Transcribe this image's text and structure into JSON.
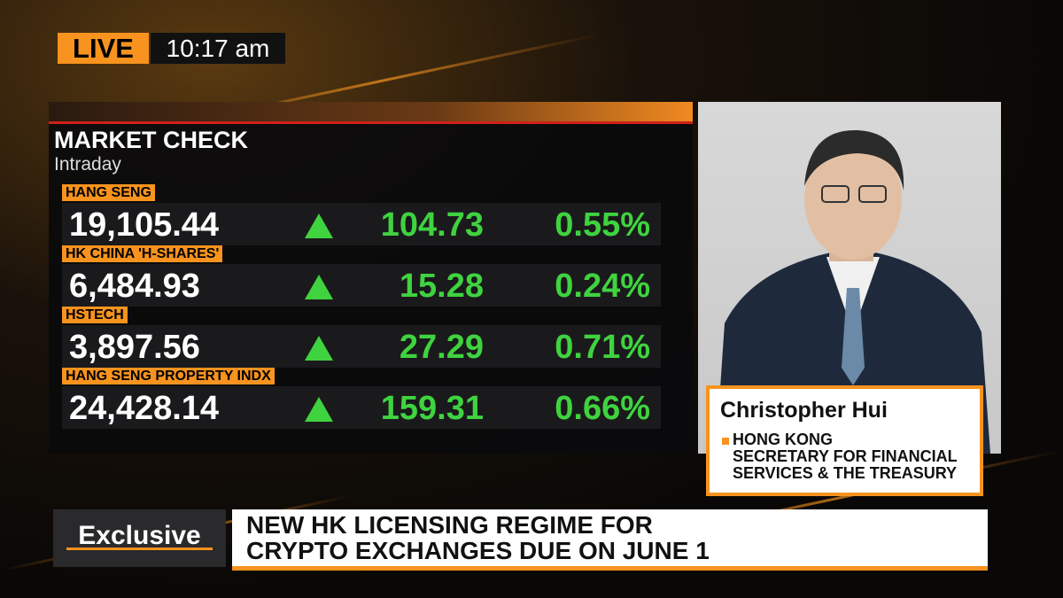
{
  "live": {
    "label": "LIVE",
    "time": "10:17 am"
  },
  "market_check": {
    "title": "MARKET CHECK",
    "subtitle": "Intraday",
    "rows": [
      {
        "name": "HANG SENG",
        "value": "19,105.44",
        "change": "104.73",
        "percent": "0.55%"
      },
      {
        "name": "HK CHINA 'H-SHARES'",
        "value": "6,484.93",
        "change": "15.28",
        "percent": "0.24%"
      },
      {
        "name": "HSTECH",
        "value": "3,897.56",
        "change": "27.29",
        "percent": "0.71%"
      },
      {
        "name": "HANG SENG PROPERTY INDX",
        "value": "24,428.14",
        "change": "159.31",
        "percent": "0.66%"
      }
    ]
  },
  "guest": {
    "name": "Christopher Hui",
    "title_lines": [
      "HONG KONG",
      "SECRETARY FOR FINANCIAL",
      "SERVICES & THE TREASURY"
    ]
  },
  "headline": {
    "tag": "Exclusive",
    "lines": [
      "NEW HK LICENSING REGIME FOR",
      "CRYPTO EXCHANGES DUE ON JUNE 1"
    ]
  }
}
